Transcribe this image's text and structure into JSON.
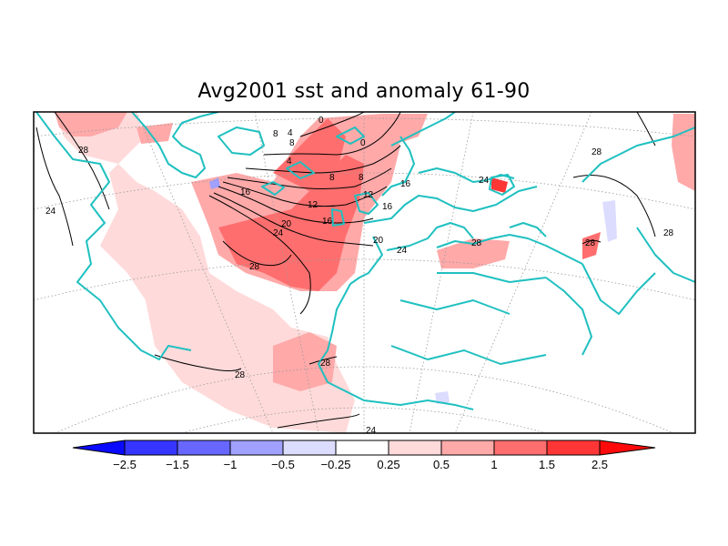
{
  "title": "Avg2001 sst and anomaly 61-90",
  "colorbar": {
    "colors": [
      "#0a0aff",
      "#3535ff",
      "#6767ff",
      "#a0a0ff",
      "#dcdcff",
      "#ffffff",
      "#ffdada",
      "#ffa9a9",
      "#ff6e6e",
      "#ff3636",
      "#ff0a0a"
    ],
    "labels": [
      "-2.5",
      "-1.5",
      "-1",
      "-0.5",
      "-0.25",
      "0.25",
      "0.5",
      "1",
      "1.5",
      "2.5"
    ]
  },
  "contour_labels": [
    {
      "text": "28"
    },
    {
      "text": "24"
    },
    {
      "text": "28"
    },
    {
      "text": "0"
    },
    {
      "text": "4"
    },
    {
      "text": "8"
    },
    {
      "text": "8"
    },
    {
      "text": "4"
    },
    {
      "text": "0"
    },
    {
      "text": "8"
    },
    {
      "text": "8"
    },
    {
      "text": "12"
    },
    {
      "text": "12"
    },
    {
      "text": "16"
    },
    {
      "text": "16"
    },
    {
      "text": "16"
    },
    {
      "text": "16"
    },
    {
      "text": "20"
    },
    {
      "text": "24"
    },
    {
      "text": "20"
    },
    {
      "text": "28"
    },
    {
      "text": "24"
    },
    {
      "text": "28"
    },
    {
      "text": "28"
    },
    {
      "text": "24"
    },
    {
      "text": "28"
    },
    {
      "text": "28"
    },
    {
      "text": "28"
    },
    {
      "text": "24"
    }
  ],
  "colors": {
    "coast": "#20c0c0",
    "contour": "#000000",
    "frame": "#000000"
  }
}
